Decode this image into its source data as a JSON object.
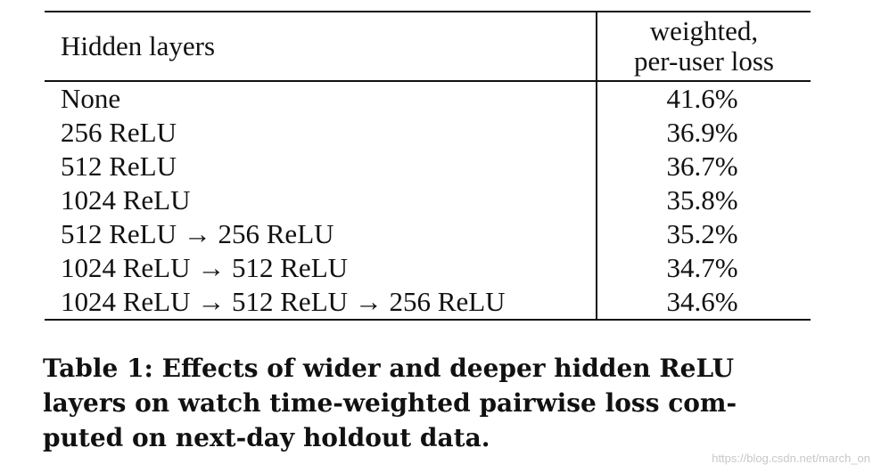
{
  "table": {
    "headers": [
      "Hidden layers",
      "weighted,",
      "per-user loss"
    ],
    "rows": [
      {
        "layers": "None",
        "loss": "41.6%"
      },
      {
        "layers": "256 ReLU",
        "loss": "36.9%"
      },
      {
        "layers": "512 ReLU",
        "loss": "36.7%"
      },
      {
        "layers": "1024 ReLU",
        "loss": "35.8%"
      },
      {
        "layers": "512 ReLU → 256 ReLU",
        "loss": "35.2%"
      },
      {
        "layers": "1024 ReLU → 512 ReLU",
        "loss": "34.7%"
      },
      {
        "layers": "1024 ReLU → 512 ReLU → 256 ReLU",
        "loss": "34.6%"
      }
    ]
  },
  "caption": {
    "line1": "Table 1: Effects of wider and deeper hidden ReLU",
    "line2": "layers on watch time-weighted pairwise loss com-",
    "line3": "puted on next-day holdout data."
  },
  "watermark": "https://blog.csdn.net/march_on"
}
